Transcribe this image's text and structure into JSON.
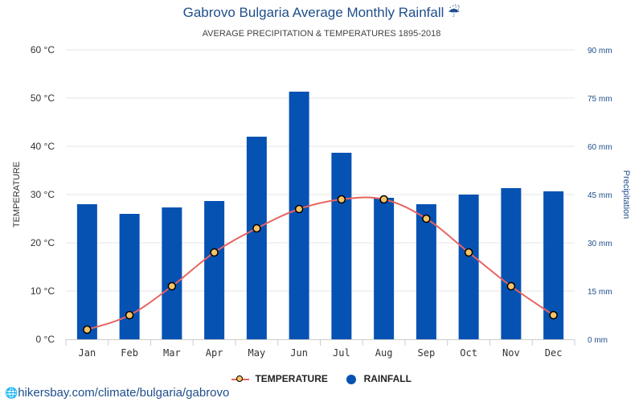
{
  "title": "Gabrovo Bulgaria Average Monthly Rainfall ☔",
  "subtitle": "AVERAGE PRECIPITATION & TEMPERATURES 1895-2018",
  "source_text": "hikersbay.com/climate/bulgaria/gabrovo",
  "legend": {
    "temperature": "TEMPERATURE",
    "rainfall": "RAINFALL"
  },
  "colors": {
    "bars": "#0652b3",
    "line": "#e8635f",
    "markers": "#f6c466",
    "title": "#1f4e8c"
  },
  "chart_data": {
    "type": "bar",
    "categories": [
      "Jan",
      "Feb",
      "Mar",
      "Apr",
      "May",
      "Jun",
      "Jul",
      "Aug",
      "Sep",
      "Oct",
      "Nov",
      "Dec"
    ],
    "series": [
      {
        "name": "RAINFALL",
        "type": "bar",
        "axis": "right",
        "unit": "mm",
        "values": [
          42,
          39,
          41,
          43,
          63,
          77,
          58,
          44,
          42,
          45,
          47,
          46
        ]
      },
      {
        "name": "TEMPERATURE",
        "type": "line",
        "axis": "left",
        "unit": "°C",
        "values": [
          2,
          5,
          11,
          18,
          23,
          27,
          29,
          29,
          25,
          18,
          11,
          5
        ]
      }
    ],
    "left_axis": {
      "label": "TEMPERATURE",
      "range": [
        0,
        60
      ],
      "ticks": [
        "0 °C",
        "10 °C",
        "20 °C",
        "30 °C",
        "40 °C",
        "50 °C",
        "60 °C"
      ]
    },
    "right_axis": {
      "label": "Precipitation",
      "range": [
        0,
        90
      ],
      "ticks": [
        "0 mm",
        "15 mm",
        "30 mm",
        "45 mm",
        "60 mm",
        "75 mm",
        "90 mm"
      ]
    },
    "grid": true,
    "legend_position": "bottom-center"
  }
}
